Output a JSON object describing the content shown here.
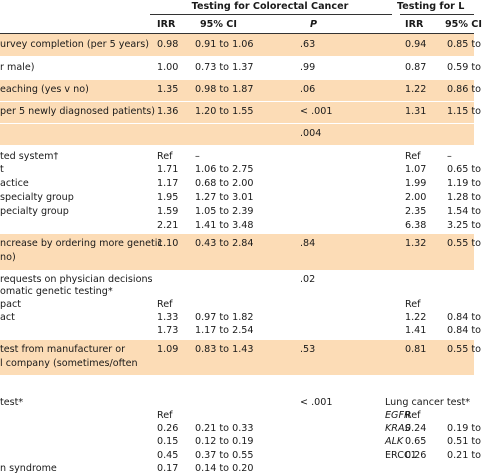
{
  "header": {
    "group_left": "Testing for Colorectal Cancer",
    "group_right": "Testing for L",
    "columns": [
      "IRR",
      "95% CI",
      "P",
      "IRR",
      "95% CI"
    ]
  },
  "rows": [
    {
      "label": "urvey completion (per 5 years)",
      "cells": [
        "0.98",
        "0.91 to 1.06",
        ".63",
        null,
        "0.94",
        "0.85 to"
      ],
      "shaded": true
    },
    {
      "label": "r male)",
      "cells": [
        "1.00",
        "0.73 to 1.37",
        ".99",
        null,
        "0.87",
        "0.59 to"
      ],
      "shaded": false
    },
    {
      "label": "eaching (yes v no)",
      "cells": [
        "1.35",
        "0.98 to 1.87",
        ".06",
        null,
        "1.22",
        "0.86 to"
      ],
      "shaded": true
    },
    {
      "label": "per 5 newly diagnosed patients)",
      "cells": [
        "1.36",
        "1.20 to 1.55",
        "< .001",
        null,
        "1.31",
        "1.15 to"
      ],
      "shaded": true
    },
    {
      "label": null,
      "cells": [
        null,
        null,
        ".004",
        null,
        null,
        null
      ],
      "shaded": true
    },
    {
      "label": "ted system†",
      "cells": [
        "Ref",
        "–",
        null,
        null,
        "Ref",
        "–"
      ],
      "shaded": false
    },
    {
      "label": "t",
      "cells": [
        "1.71",
        "1.06 to 2.75",
        null,
        null,
        "1.07",
        "0.65 to"
      ],
      "shaded": false
    },
    {
      "label": "actice",
      "cells": [
        "1.17",
        "0.68 to 2.00",
        null,
        null,
        "1.99",
        "1.19 to"
      ],
      "shaded": false
    },
    {
      "label": "specialty group",
      "cells": [
        "1.95",
        "1.27 to 3.01",
        null,
        null,
        "2.00",
        "1.28 to"
      ],
      "shaded": false
    },
    {
      "label": "pecialty group",
      "cells": [
        "1.59",
        "1.05 to 2.39",
        null,
        null,
        "2.35",
        "1.54 to"
      ],
      "shaded": false
    },
    {
      "label": null,
      "cells": [
        "2.21",
        "1.41 to 3.48",
        null,
        null,
        "6.38",
        "3.25 to"
      ],
      "shaded": false
    },
    {
      "label": "ncrease by ordering more genetic",
      "cells": [
        "1.10",
        "0.43 to 2.84",
        ".84",
        null,
        "1.32",
        "0.55 to"
      ],
      "shaded": true
    },
    {
      "label": "no)",
      "cells": [
        null,
        null,
        null,
        null,
        null,
        null
      ],
      "shaded": true
    },
    {
      "label": "requests on physician decisions",
      "cells": [
        null,
        null,
        ".02",
        null,
        null,
        null
      ],
      "shaded": false
    },
    {
      "label": "omatic genetic testing*",
      "cells": [
        null,
        null,
        null,
        null,
        null,
        null
      ],
      "shaded": false
    },
    {
      "label": "pact",
      "cells": [
        "Ref",
        null,
        null,
        null,
        "Ref",
        null
      ],
      "shaded": false
    },
    {
      "label": "act",
      "cells": [
        "1.33",
        "0.97 to 1.82",
        null,
        null,
        "1.22",
        "0.84 to"
      ],
      "shaded": false
    },
    {
      "label": null,
      "cells": [
        "1.73",
        "1.17 to 2.54",
        null,
        null,
        "1.41",
        "0.84 to"
      ],
      "shaded": false
    },
    {
      "label": "test from manufacturer or",
      "cells": [
        "1.09",
        "0.83 to 1.43",
        ".53",
        null,
        "0.81",
        "0.55 to"
      ],
      "shaded": true
    },
    {
      "label": "l company (sometimes/often",
      "cells": [
        null,
        null,
        null,
        null,
        null,
        null
      ],
      "shaded": true
    },
    {
      "label": "test*",
      "cells": [
        null,
        null,
        "< .001",
        "Lung cancer test*",
        null,
        null
      ],
      "shaded": false
    },
    {
      "label": null,
      "cells": [
        "Ref",
        null,
        null,
        "EGFR",
        "Ref",
        null
      ],
      "shaded": false
    },
    {
      "label": null,
      "cells": [
        "0.26",
        "0.21 to 0.33",
        null,
        "KRAS",
        "0.24",
        "0.19 to"
      ],
      "shaded": false
    },
    {
      "label": null,
      "cells": [
        "0.15",
        "0.12 to 0.19",
        null,
        "ALK",
        "0.65",
        "0.51 to"
      ],
      "shaded": false
    },
    {
      "label": null,
      "cells": [
        "0.45",
        "0.37 to 0.55",
        null,
        "ERCC1",
        "0.26",
        "0.21 to"
      ],
      "shaded": false
    },
    {
      "label": "n syndrome",
      "cells": [
        "0.17",
        "0.14 to 0.20",
        null,
        null,
        null,
        null
      ],
      "shaded": false
    }
  ]
}
